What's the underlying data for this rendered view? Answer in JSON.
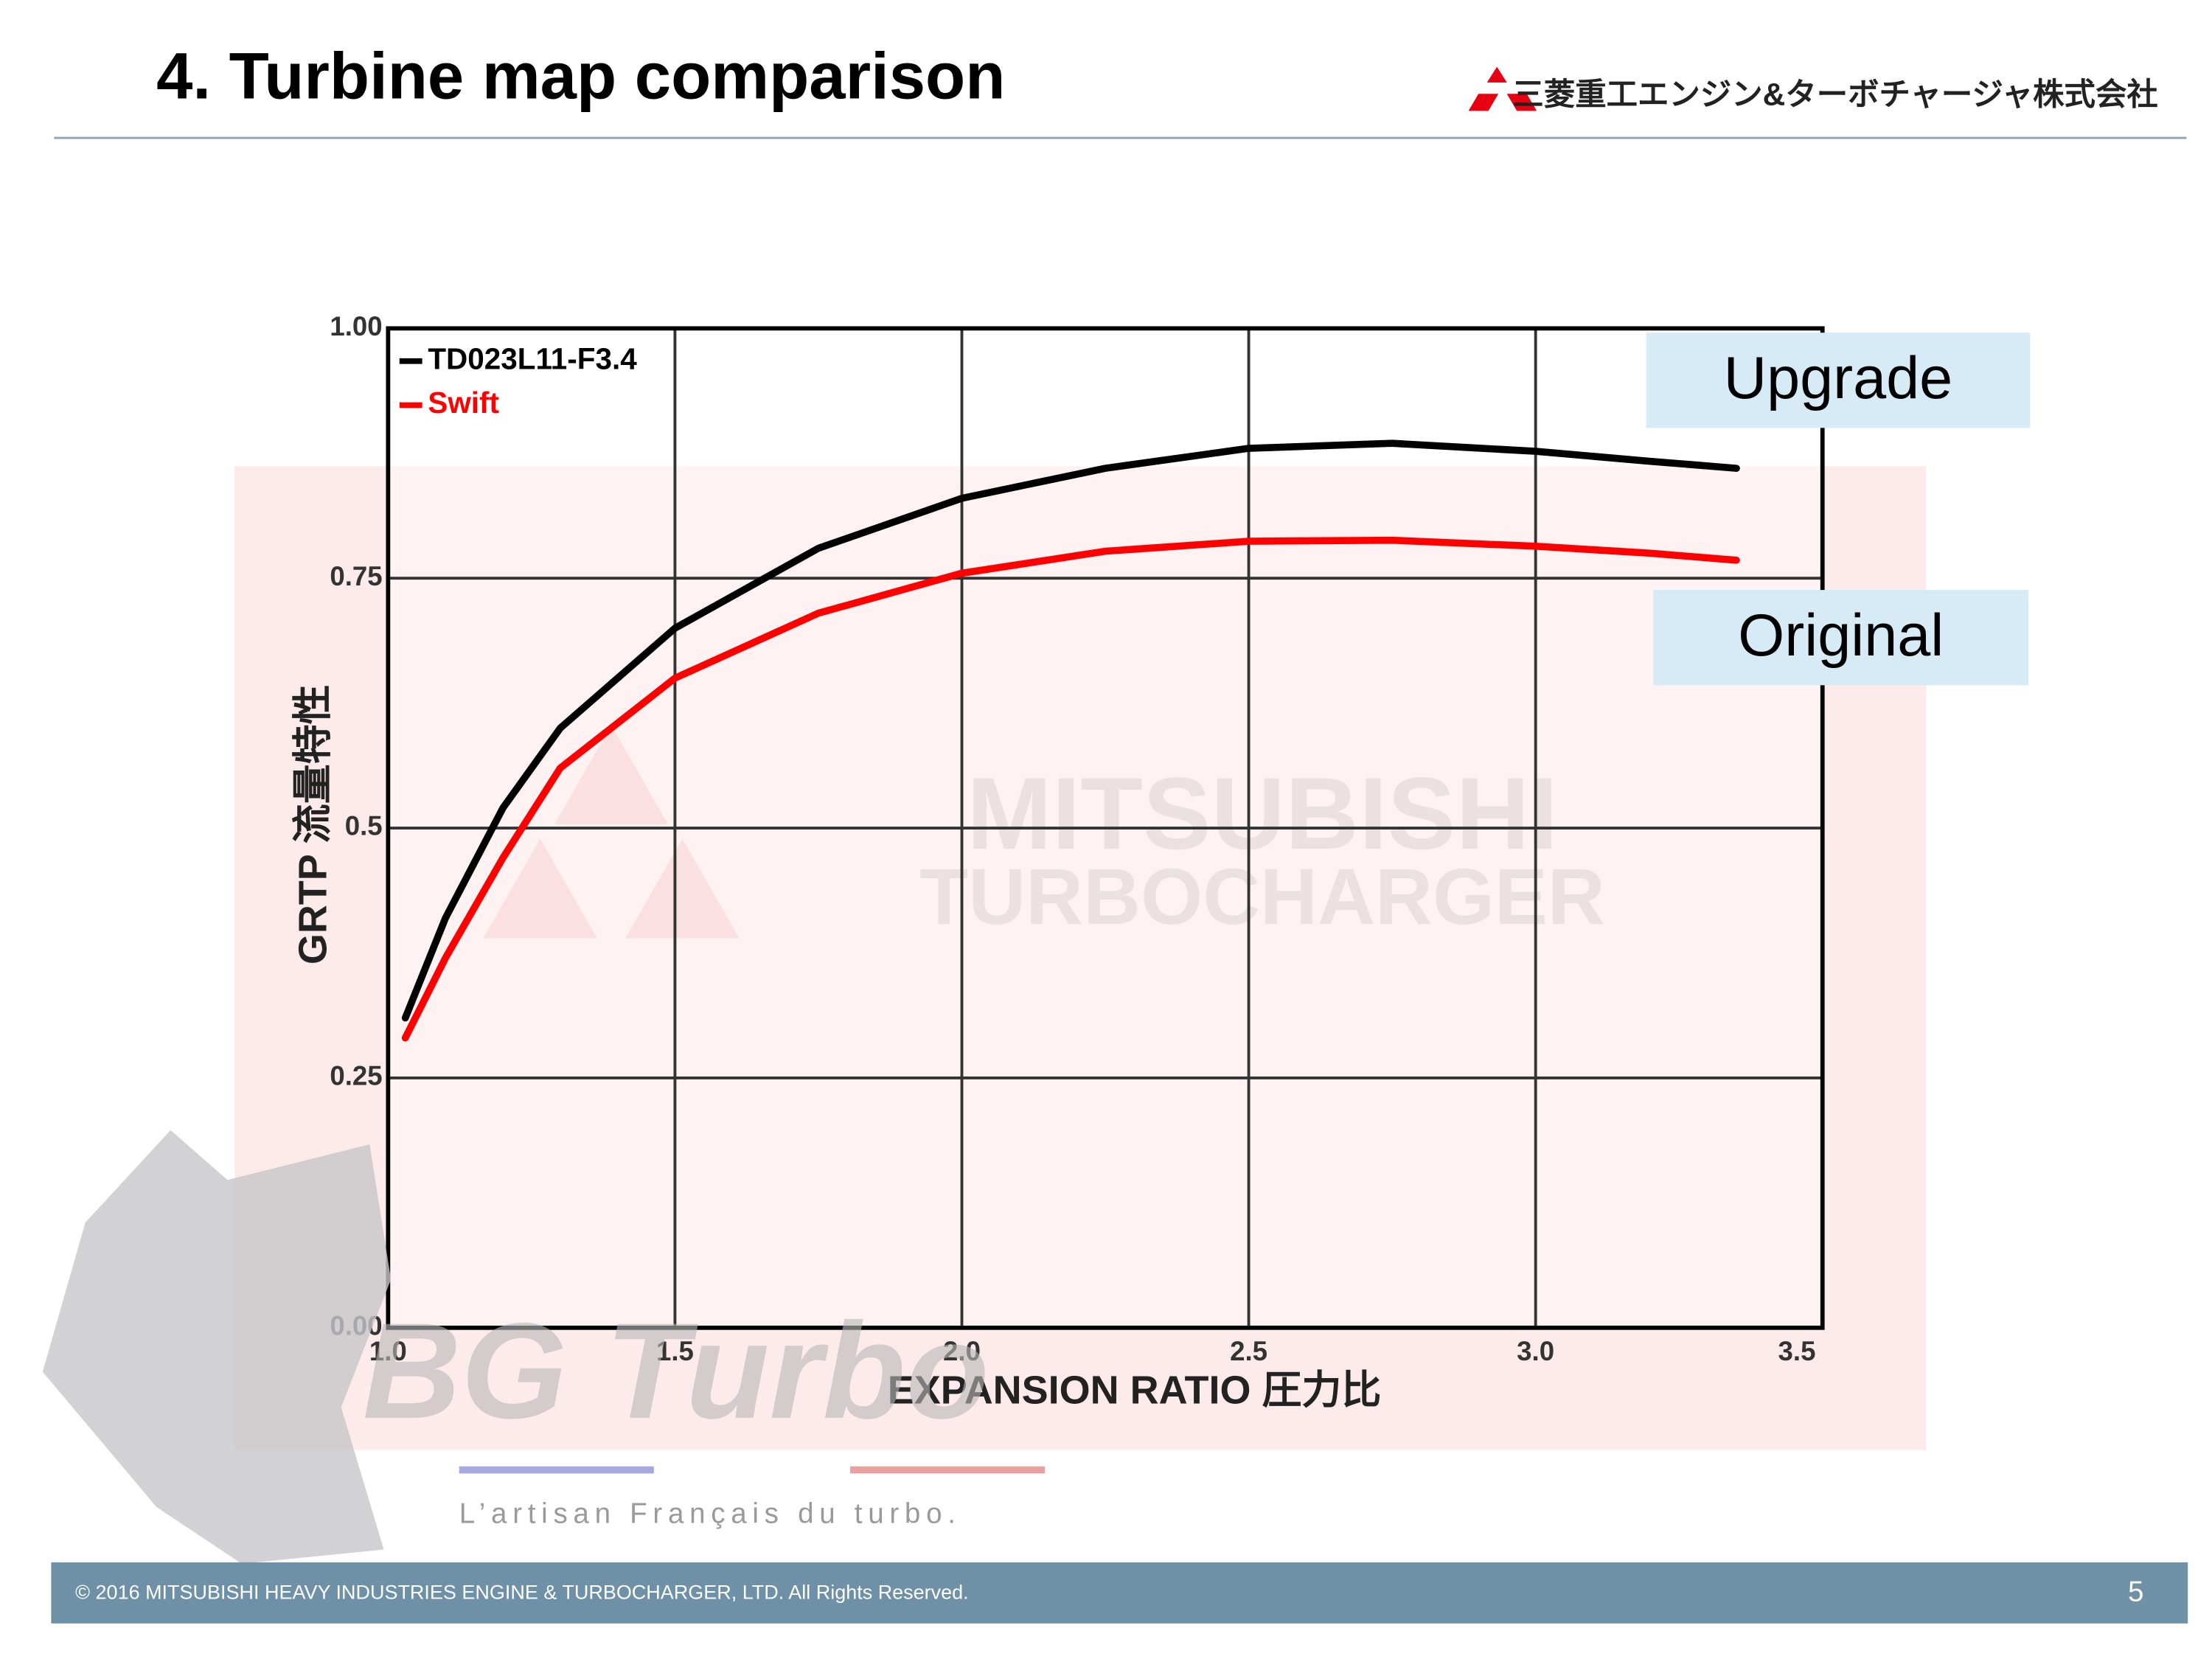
{
  "slide": {
    "title": "4.  Turbine map comparison",
    "company": "三菱重工エンジン&ターボチャージャ株式会社",
    "footer": "© 2016 MITSUBISHI HEAVY INDUSTRIES ENGINE & TURBOCHARGER, LTD.  All Rights Reserved.",
    "page_number": "5",
    "watermark_lines": [
      "MITSUBISHI",
      "TURBOCHARGER"
    ],
    "overlay_brand": "BG Turbo",
    "overlay_tagline": "L’artisan Français du turbo."
  },
  "chart_data": {
    "type": "line",
    "x_label": "EXPANSION RATIO 圧力比",
    "y_label": "GRTP 流量特性",
    "annotations": [
      "Upgrade",
      "Original"
    ],
    "x": [
      1.03,
      1.1,
      1.2,
      1.3,
      1.5,
      1.75,
      2.0,
      2.25,
      2.5,
      2.75,
      3.0,
      3.2,
      3.35
    ],
    "series": [
      {
        "name": "TD023L11-F3.4",
        "color": "#000000",
        "values": [
          0.31,
          0.41,
          0.52,
          0.6,
          0.7,
          0.78,
          0.83,
          0.86,
          0.88,
          0.885,
          0.877,
          0.867,
          0.86
        ]
      },
      {
        "name": "Swift",
        "color": "#ff0000",
        "values": [
          0.29,
          0.37,
          0.47,
          0.56,
          0.65,
          0.715,
          0.755,
          0.777,
          0.787,
          0.788,
          0.782,
          0.775,
          0.768
        ]
      }
    ],
    "xlim": [
      1.0,
      3.5
    ],
    "ylim": [
      0.0,
      1.0
    ],
    "xticks": [
      {
        "value": 1,
        "label": "1.0"
      },
      1.5,
      {
        "value": 2,
        "label": "2.0"
      },
      2.5,
      {
        "value": 3,
        "label": "3.0"
      },
      3.5
    ],
    "yticks": [
      {
        "value": 0,
        "label": "0.00"
      },
      0.25,
      0.5,
      0.75,
      {
        "value": 1,
        "label": "1.00"
      }
    ],
    "grid": true,
    "legend": "top-left"
  }
}
